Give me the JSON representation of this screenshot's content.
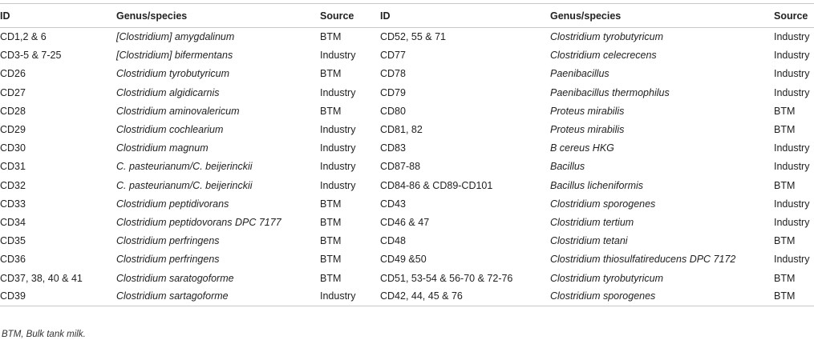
{
  "headers": [
    "ID",
    "Genus/species",
    "Source",
    "ID",
    "Genus/species",
    "Source"
  ],
  "rows": [
    {
      "id1": "CD1,2 & 6",
      "sp1": "[Clostridium] amygdalinum",
      "src1": "BTM",
      "id2": "CD52, 55 & 71",
      "sp2": "Clostridium tyrobutyricum",
      "src2": "Industry"
    },
    {
      "id1": "CD3-5 & 7-25",
      "sp1": "[Clostridium] bifermentans",
      "src1": "Industry",
      "id2": "CD77",
      "sp2": "Clostridium celecrecens",
      "src2": "Industry"
    },
    {
      "id1": "CD26",
      "sp1": "Clostridium tyrobutyricum",
      "src1": "BTM",
      "id2": "CD78",
      "sp2": "Paenibacillus",
      "src2": "Industry"
    },
    {
      "id1": "CD27",
      "sp1": "Clostridium algidicarnis",
      "src1": "Industry",
      "id2": "CD79",
      "sp2": "Paenibacillus thermophilus",
      "src2": "Industry"
    },
    {
      "id1": "CD28",
      "sp1": "Clostridium aminovalericum",
      "src1": "BTM",
      "id2": "CD80",
      "sp2": "Proteus mirabilis",
      "src2": "BTM"
    },
    {
      "id1": "CD29",
      "sp1": "Clostridium cochlearium",
      "src1": "Industry",
      "id2": "CD81, 82",
      "sp2": "Proteus mirabilis",
      "src2": "BTM"
    },
    {
      "id1": "CD30",
      "sp1": "Clostridium magnum",
      "src1": "Industry",
      "id2": "CD83",
      "sp2": "B cereus HKG",
      "src2": "Industry"
    },
    {
      "id1": "CD31",
      "sp1": "C. pasteurianum/C. beijerinckii",
      "src1": "Industry",
      "id2": "CD87-88",
      "sp2": "Bacillus",
      "src2": "Industry"
    },
    {
      "id1": "CD32",
      "sp1": "C. pasteurianum/C. beijerinckii",
      "src1": "Industry",
      "id2": "CD84-86 & CD89-CD101",
      "sp2": "Bacillus licheniformis",
      "src2": "BTM"
    },
    {
      "id1": "CD33",
      "sp1": "Clostridium peptidivorans",
      "src1": "BTM",
      "id2": "CD43",
      "sp2": "Clostridium sporogenes",
      "src2": "Industry"
    },
    {
      "id1": "CD34",
      "sp1": "Clostridium peptidovorans DPC 7177",
      "src1": "BTM",
      "id2": "CD46 & 47",
      "sp2": "Clostridium tertium",
      "src2": "Industry"
    },
    {
      "id1": "CD35",
      "sp1": "Clostridium perfringens",
      "src1": "BTM",
      "id2": "CD48",
      "sp2": "Clostridium tetani",
      "src2": "BTM"
    },
    {
      "id1": "CD36",
      "sp1": "Clostridium perfringens",
      "src1": "BTM",
      "id2": "CD49 &50",
      "sp2": "Clostridium thiosulfatireducens DPC 7172",
      "src2": "Industry"
    },
    {
      "id1": "CD37, 38, 40 & 41",
      "sp1": "Clostridium saratogoforme",
      "src1": "BTM",
      "id2": "CD51, 53-54 & 56-70 & 72-76",
      "sp2": "Clostridium tyrobutyricum",
      "src2": "BTM"
    },
    {
      "id1": "CD39",
      "sp1": "Clostridium sartagoforme",
      "src1": "Industry",
      "id2": "CD42, 44, 45 & 76",
      "sp2": "Clostridium sporogenes",
      "src2": "BTM"
    }
  ],
  "footnote": "BTM, Bulk tank milk."
}
